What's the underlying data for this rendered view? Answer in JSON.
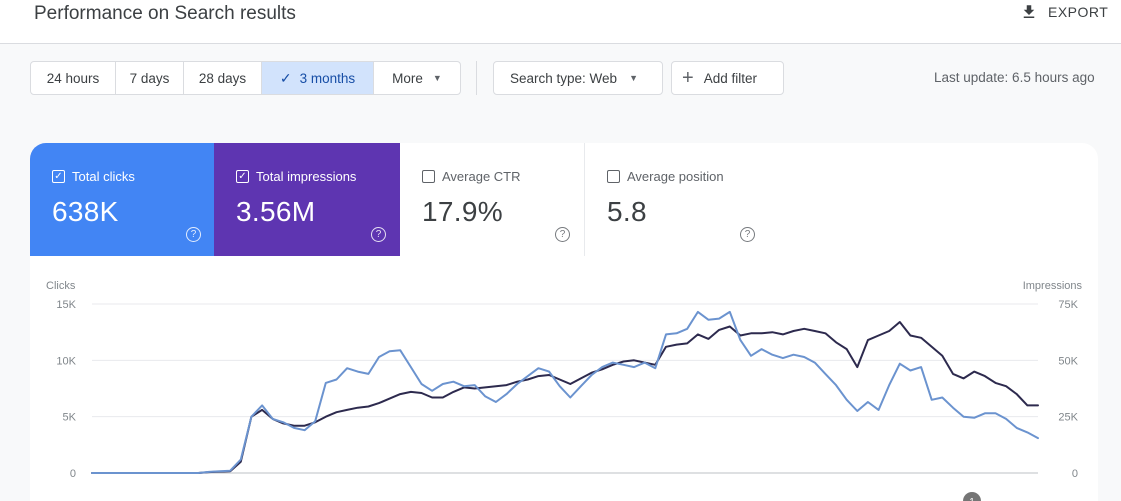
{
  "header": {
    "title": "Performance on Search results",
    "export_label": "EXPORT"
  },
  "filters": {
    "date_ranges": [
      "24 hours",
      "7 days",
      "28 days",
      "3 months",
      "More"
    ],
    "active_range": "3 months",
    "search_type": "Search type: Web",
    "add_filter": "Add filter",
    "last_update": "Last update: 6.5 hours ago"
  },
  "metrics": {
    "clicks": {
      "label": "Total clicks",
      "value": "638K",
      "selected": true
    },
    "impressions": {
      "label": "Total impressions",
      "value": "3.56M",
      "selected": true
    },
    "ctr": {
      "label": "Average CTR",
      "value": "17.9%",
      "selected": false
    },
    "position": {
      "label": "Average position",
      "value": "5.8",
      "selected": false
    }
  },
  "colors": {
    "clicks": "#4285f4",
    "impressions": "#5e35b1",
    "clicks_line": "#6b93cf",
    "impressions_line": "#2d2a4e"
  },
  "chart_data": {
    "type": "line",
    "x": [
      1,
      2,
      3,
      4,
      5,
      6,
      7,
      8,
      9,
      10,
      11,
      12,
      13,
      14,
      15,
      16,
      17,
      18,
      19,
      20,
      21,
      22,
      23,
      24,
      25,
      26,
      27,
      28,
      29,
      30,
      31,
      32,
      33,
      34,
      35,
      36,
      37,
      38,
      39,
      40,
      41,
      42,
      43,
      44,
      45,
      46,
      47,
      48,
      49,
      50,
      51,
      52,
      53,
      54,
      55,
      56,
      57,
      58,
      59,
      60,
      61,
      62,
      63,
      64,
      65,
      66,
      67,
      68,
      69,
      70,
      71,
      72,
      73,
      74,
      75,
      76,
      77,
      78,
      79,
      80,
      81,
      82,
      83,
      84,
      85,
      86,
      87,
      88,
      89,
      90
    ],
    "y_left_label": "Clicks",
    "y_left_ticks": [
      "15K",
      "10K",
      "5K",
      "0"
    ],
    "y_left_range": [
      0,
      15000
    ],
    "y_right_label": "Impressions",
    "y_right_ticks": [
      "75K",
      "50K",
      "25K",
      "0"
    ],
    "y_right_range": [
      0,
      75000
    ],
    "series": [
      {
        "key": "clicks",
        "axis": "left",
        "values": [
          0,
          0,
          0,
          0,
          0,
          0,
          0,
          0,
          0,
          0,
          0,
          100,
          150,
          200,
          1200,
          5000,
          6000,
          4800,
          4500,
          4000,
          3800,
          4600,
          8000,
          8300,
          9300,
          9000,
          8800,
          10300,
          10800,
          10900,
          9400,
          7900,
          7300,
          7900,
          8100,
          7700,
          7800,
          6800,
          6300,
          7000,
          7900,
          8600,
          9300,
          9000,
          7700,
          6700,
          7700,
          8700,
          9400,
          9800,
          9600,
          9400,
          9800,
          9300,
          12300,
          12400,
          12800,
          14300,
          13600,
          13700,
          14300,
          11800,
          10400,
          11000,
          10500,
          10200,
          10500,
          10300,
          9800,
          8800,
          7800,
          6500,
          5500,
          6300,
          5600,
          7800,
          9700,
          9100,
          9400,
          6500,
          6700,
          5800,
          5000,
          4900,
          5300,
          5300,
          4800,
          4000,
          3600,
          3100
        ],
        "smooth": true
      },
      {
        "key": "impressions",
        "axis": "right",
        "values": [
          0,
          0,
          0,
          0,
          0,
          0,
          0,
          0,
          0,
          0,
          0,
          400,
          600,
          800,
          5000,
          25000,
          28000,
          24000,
          22000,
          21000,
          21000,
          22500,
          25000,
          27000,
          28000,
          29000,
          29500,
          31000,
          33000,
          35000,
          36000,
          35500,
          33500,
          33500,
          36000,
          38000,
          37500,
          38000,
          38500,
          39000,
          40500,
          41500,
          43000,
          43500,
          41500,
          39500,
          42000,
          44500,
          46000,
          48000,
          49500,
          50000,
          49000,
          48000,
          56000,
          57000,
          57500,
          61500,
          59500,
          63500,
          65000,
          61000,
          62000,
          62000,
          62500,
          61500,
          63000,
          64000,
          63000,
          62000,
          58000,
          55000,
          47000,
          59000,
          61000,
          63000,
          67000,
          61000,
          60000,
          56000,
          52000,
          44000,
          42000,
          45000,
          43000,
          40000,
          38500,
          35000,
          30000,
          30000
        ]
      }
    ]
  }
}
